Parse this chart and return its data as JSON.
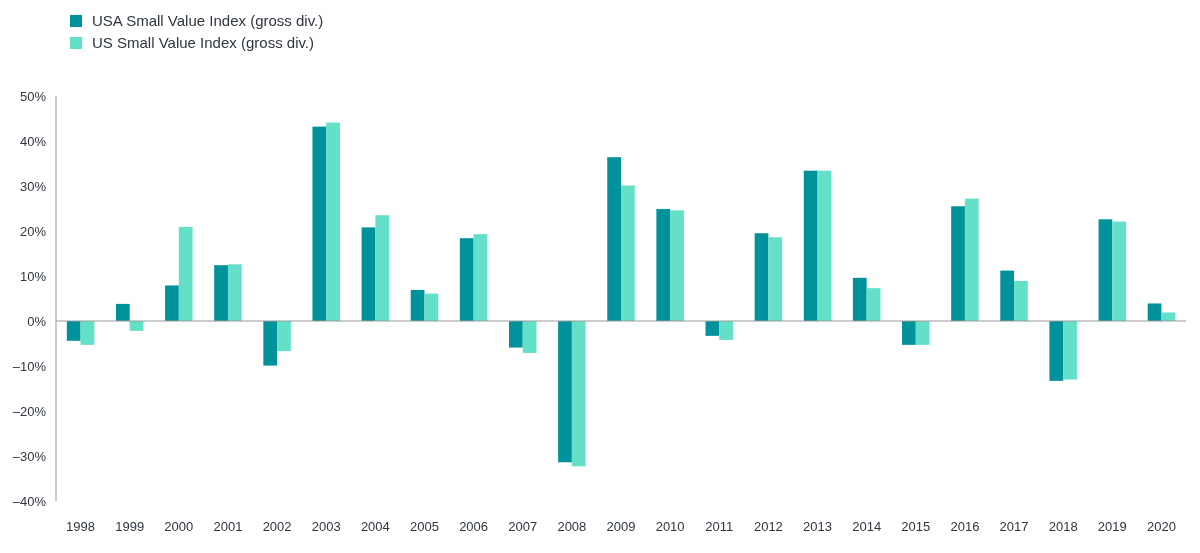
{
  "chart_data": {
    "type": "bar",
    "categories": [
      "1998",
      "1999",
      "2000",
      "2001",
      "2002",
      "2003",
      "2004",
      "2005",
      "2006",
      "2007",
      "2008",
      "2009",
      "2010",
      "2011",
      "2012",
      "2013",
      "2014",
      "2015",
      "2016",
      "2017",
      "2018",
      "2019",
      "2020"
    ],
    "series": [
      {
        "name": "USA Small Value Index (gross div.)",
        "color": "#00929b",
        "values": [
          -4.4,
          3.8,
          7.9,
          12.4,
          -9.9,
          43.2,
          20.8,
          6.9,
          18.4,
          -5.9,
          -31.4,
          36.4,
          24.9,
          -3.3,
          19.5,
          33.4,
          9.6,
          -5.3,
          25.5,
          11.2,
          -13.3,
          22.6,
          3.9
        ]
      },
      {
        "name": "US Small Value Index (gross div.)",
        "color": "#64e0c8",
        "values": [
          -5.3,
          -2.2,
          20.9,
          12.6,
          -6.7,
          44.1,
          23.5,
          6.1,
          19.3,
          -7.1,
          -32.3,
          30.1,
          24.6,
          -4.2,
          18.6,
          33.4,
          7.3,
          -5.3,
          27.2,
          8.9,
          -13.0,
          22.1,
          1.9
        ]
      }
    ],
    "ylim": [
      -40,
      50
    ],
    "yticks": [
      {
        "value": -40,
        "label": "–40%"
      },
      {
        "value": -30,
        "label": "–30%"
      },
      {
        "value": -20,
        "label": "–20%"
      },
      {
        "value": -10,
        "label": "–10%"
      },
      {
        "value": 0,
        "label": "0%"
      },
      {
        "value": 10,
        "label": "10%"
      },
      {
        "value": 20,
        "label": "20%"
      },
      {
        "value": 30,
        "label": "30%"
      },
      {
        "value": 40,
        "label": "40%"
      },
      {
        "value": 50,
        "label": "50%"
      }
    ],
    "legend": "top left"
  }
}
